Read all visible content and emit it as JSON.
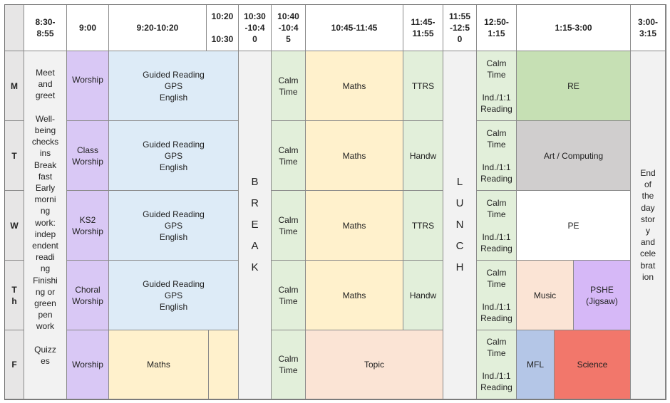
{
  "headers": {
    "corner": "",
    "t0830": "8:30-\n8:55",
    "t0900": "9:00",
    "t0920": "9:20-10:20",
    "t1020": "10:20\n\n10:30",
    "t1030": "10:30\n-10:4\n0",
    "t1040": "10:40\n-10:4\n5",
    "t1045": "10:45-11:45",
    "t1145": "11:45-\n11:55",
    "t1155": "11:55\n-12:5\n0",
    "t1250": "12:50-\n1:15",
    "t0115": "1:15-3:00",
    "t0300": "3:00-\n3:15"
  },
  "days": [
    "M",
    "T",
    "W",
    "T\nh",
    "F"
  ],
  "early": "Meet\nand\ngreet\n\nWell-\nbeing\nchecks\nins\nBreak\nfast\nEarly\nmorni\nng\nwork:\nindep\nendent\nreadi\nng\nFinishi\nng or\ngreen\npen\nwork\n\nQuizz\nes",
  "worship": [
    "Worship",
    "Class\nWorship",
    "KS2\nWorship",
    "Choral\nWorship",
    "Worship"
  ],
  "reading": "Guided Reading\nGPS\nEnglish",
  "break_letters": [
    "B",
    "R",
    "E",
    "A",
    "K"
  ],
  "lunch_letters": [
    "L",
    "U",
    "N",
    "C",
    "H"
  ],
  "calm": "Calm\nTime",
  "maths": "Maths",
  "after_maths": [
    "TTRS",
    "Handw",
    "TTRS",
    "Handw"
  ],
  "topic": "Topic",
  "afternoon_calm": "Calm\nTime\n\nInd./1:1\nReading",
  "afternoon": {
    "re": "RE",
    "art": "Art / Computing",
    "pe": "PE",
    "music": "Music",
    "pshe": "PSHE\n(Jigsaw)",
    "mfl": "MFL",
    "science": "Science"
  },
  "end_of_day": "End\nof\nthe\nday\nstor\ny\nand\ncele\nbrat\nion"
}
